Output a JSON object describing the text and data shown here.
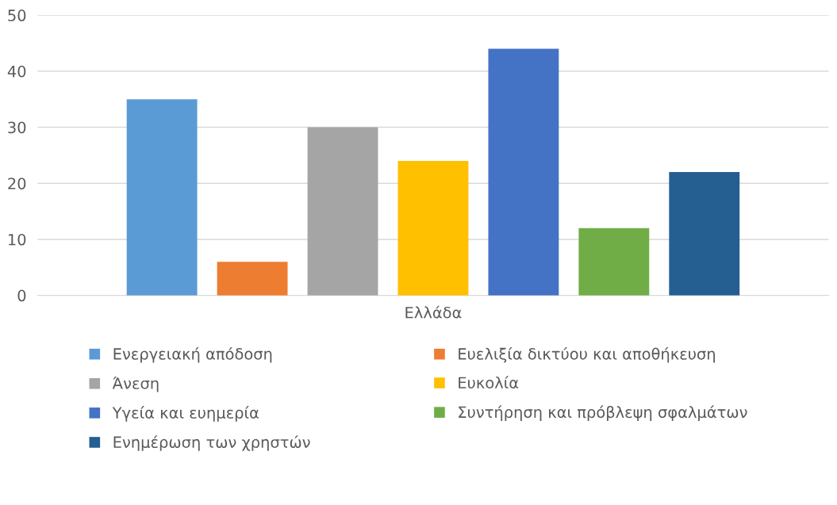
{
  "chart_data": {
    "type": "bar",
    "categories": [
      "Ελλάδα"
    ],
    "series": [
      {
        "name": "Ενεργειακή απόδοση",
        "color": "#5b9bd5",
        "values": [
          35
        ]
      },
      {
        "name": "Ευελιξία δικτύου και αποθήκευση",
        "color": "#ed7d31",
        "values": [
          6
        ]
      },
      {
        "name": "Άνεση",
        "color": "#a5a5a5",
        "values": [
          30
        ]
      },
      {
        "name": "Ευκολία",
        "color": "#ffc000",
        "values": [
          24
        ]
      },
      {
        "name": "Υγεία και ευημερία",
        "color": "#4472c4",
        "values": [
          44
        ]
      },
      {
        "name": "Συντήρηση και πρόβλεψη σφαλμάτων",
        "color": "#70ad47",
        "values": [
          12
        ]
      },
      {
        "name": "Ενημέρωση των χρηστών",
        "color": "#255e91",
        "values": [
          22
        ]
      }
    ],
    "ylim": [
      0,
      50
    ],
    "yticks": [
      0,
      10,
      20,
      30,
      40,
      50
    ],
    "grid": "y",
    "legend": "bottom"
  }
}
